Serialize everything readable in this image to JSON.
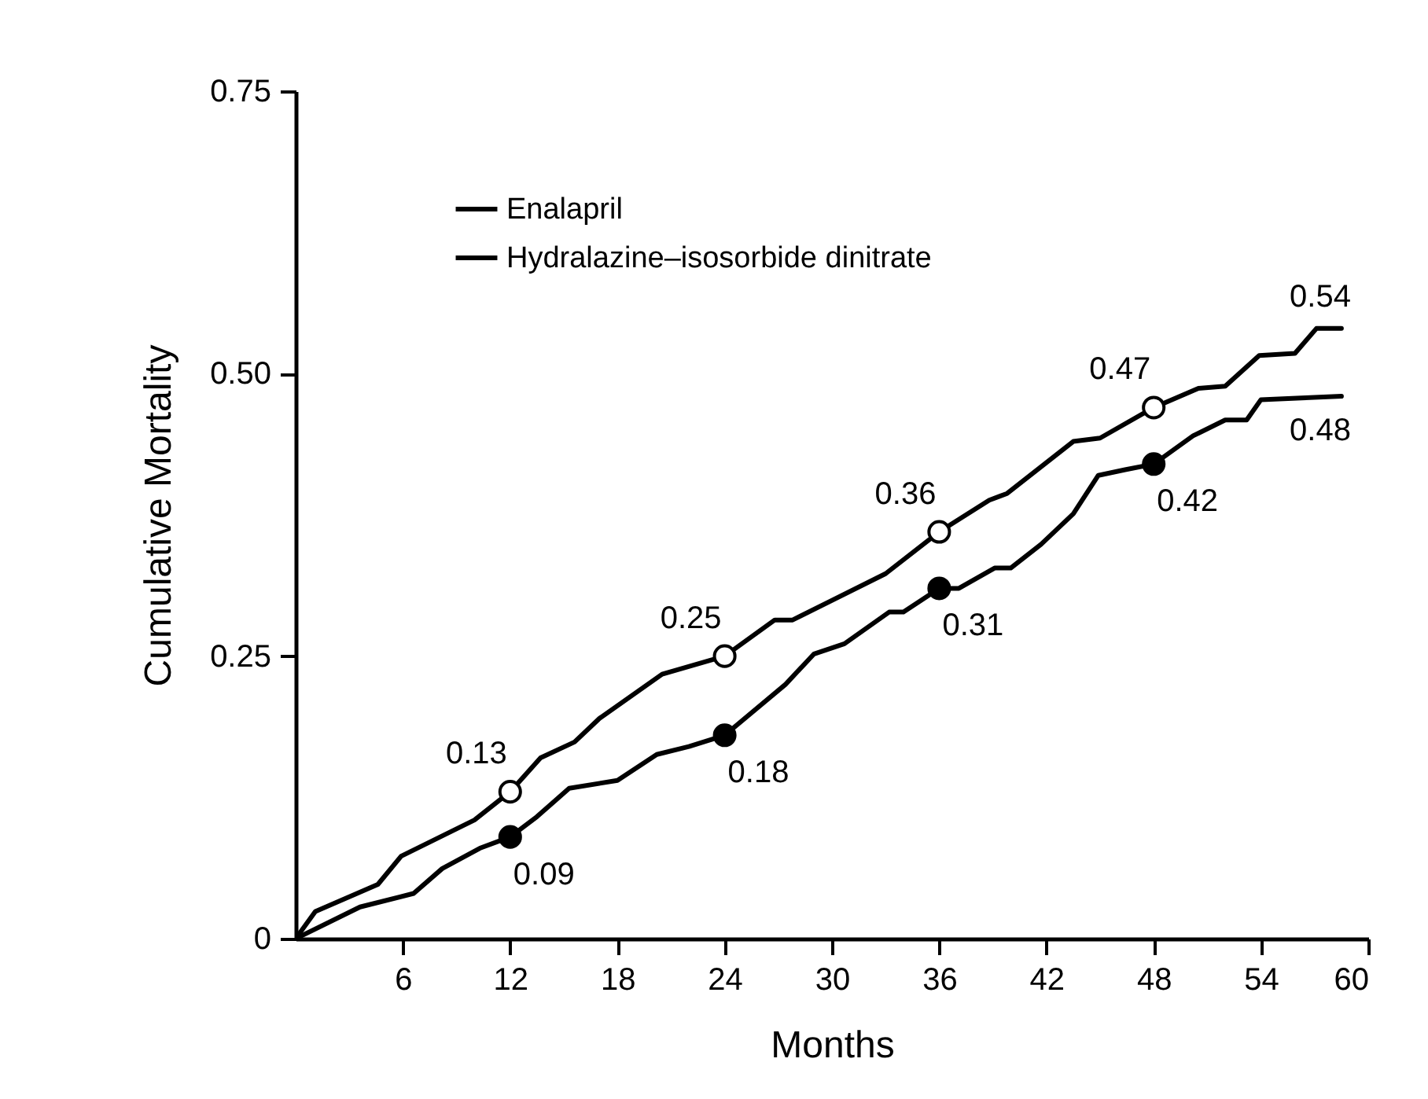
{
  "chart_data": {
    "type": "line",
    "xlabel": "Months",
    "ylabel": "Cumulative Mortality",
    "xlim": [
      0,
      60
    ],
    "xticks": [
      6,
      12,
      18,
      24,
      30,
      36,
      42,
      48,
      54,
      60
    ],
    "ylim": [
      0,
      0.75
    ],
    "yticks": [
      0,
      {
        "value": 0.25,
        "label": "0.25"
      },
      {
        "value": 0.5,
        "label": "0.50"
      },
      0.75
    ],
    "grid": false,
    "legend": "top left",
    "line_style": "solid",
    "series": [
      {
        "name": "Enalapril",
        "type": "line",
        "color": "#000000",
        "x": [
          0,
          3.6,
          6.6,
          8.2,
          10.3,
          12,
          13.5,
          15.3,
          18,
          20.2,
          22,
          24,
          27.4,
          29,
          30.7,
          33.2,
          34,
          36,
          37.1,
          39.1,
          40,
          41.7,
          43.5,
          44.9,
          46.4,
          48,
          50.2,
          52,
          53.2,
          54,
          58.5
        ],
        "values": [
          0,
          0.028,
          0.04,
          0.062,
          0.08,
          0.09,
          0.108,
          0.133,
          0.14,
          0.163,
          0.17,
          0.18,
          0.225,
          0.252,
          0.261,
          0.289,
          0.289,
          0.31,
          0.31,
          0.328,
          0.328,
          0.349,
          0.376,
          0.41,
          0.415,
          0.42,
          0.445,
          0.459,
          0.459,
          0.477,
          0.48
        ]
      },
      {
        "name": "Hydralazine–isosorbide dinitrate",
        "type": "line",
        "color": "#000000",
        "x": [
          0,
          1.1,
          4.6,
          5.9,
          10,
          12,
          13.7,
          15.6,
          17,
          20.5,
          24,
          26.8,
          27.8,
          33,
          36,
          38.8,
          39.8,
          43.5,
          45,
          48,
          50.5,
          52,
          53.9,
          55.9,
          57.1,
          58.5
        ],
        "values": [
          0,
          0.024,
          0.048,
          0.073,
          0.105,
          0.13,
          0.16,
          0.174,
          0.195,
          0.234,
          0.25,
          0.282,
          0.282,
          0.323,
          0.36,
          0.388,
          0.394,
          0.44,
          0.443,
          0.47,
          0.487,
          0.489,
          0.516,
          0.518,
          0.54,
          0.54
        ]
      },
      {
        "type": "scatter",
        "marker": "circle",
        "color": "#000000",
        "data_labels": true,
        "x": [
          12,
          24,
          36,
          48
        ],
        "values": [
          0.09,
          0.18,
          0.31,
          0.42
        ]
      },
      {
        "type": "scatter",
        "marker": "circle",
        "color": "#ffffff",
        "data_labels": true,
        "x": [
          12,
          24,
          36,
          48
        ],
        "values": [
          0.13,
          0.25,
          0.36,
          0.47
        ]
      }
    ],
    "annotations": [
      {
        "text": "0.54",
        "x": 58.5,
        "y": 0.54
      },
      {
        "text": "0.48",
        "x": 58.5,
        "y": 0.48
      }
    ]
  }
}
